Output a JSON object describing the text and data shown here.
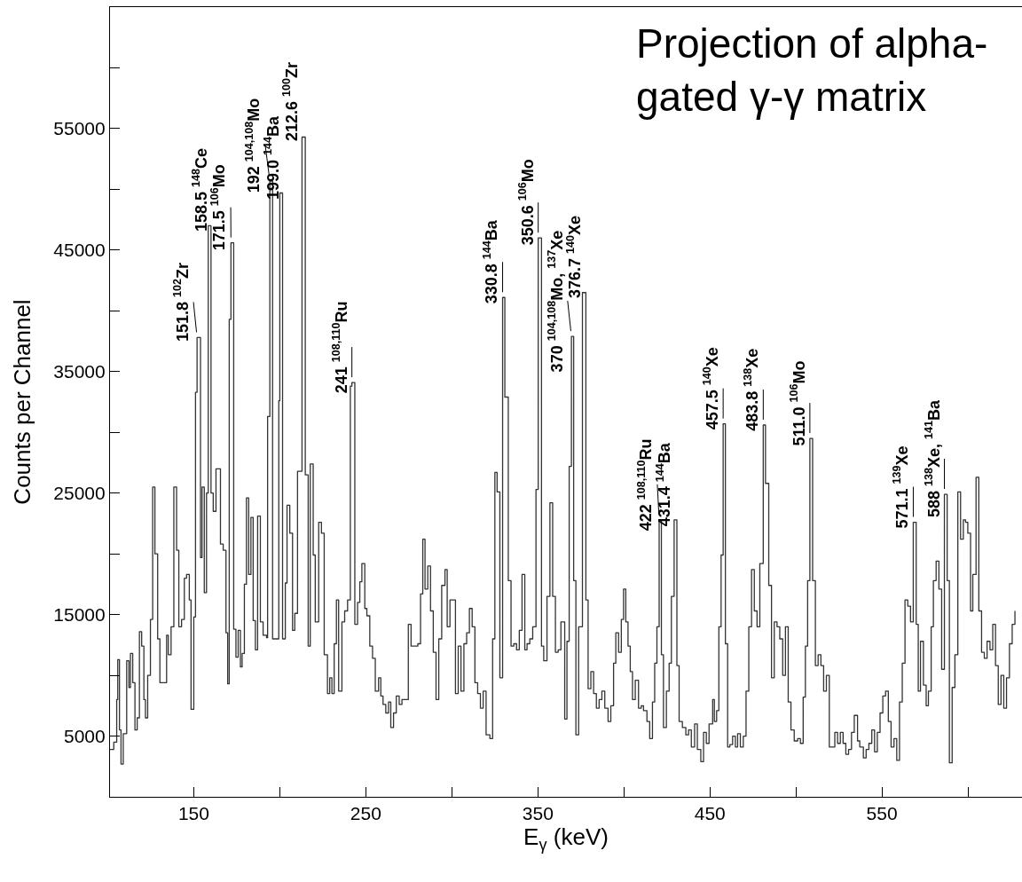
{
  "chart_data": {
    "type": "step",
    "title": "Projection of alpha-\ngated γ-γ matrix",
    "xlabel": "E$_{γ}$ (keV)",
    "ylabel": "Counts per Channel",
    "xlim": [
      101.3,
      631.4
    ],
    "ylim": [
      0,
      65000
    ],
    "xticks": [
      150,
      {
        "value": 200,
        "label": null
      },
      250,
      {
        "value": 300,
        "label": null
      },
      350,
      {
        "value": 400,
        "label": null
      },
      450,
      {
        "value": 500,
        "label": null
      },
      550,
      {
        "value": 600,
        "label": null
      }
    ],
    "yticks": [
      5000,
      {
        "value": 10000,
        "label": null
      },
      15000,
      {
        "value": 20000,
        "label": null
      },
      25000,
      {
        "value": 30000,
        "label": null
      },
      35000,
      {
        "value": 40000,
        "label": null
      },
      45000,
      {
        "value": 50000,
        "label": null
      },
      55000,
      {
        "value": 60000,
        "label": null
      }
    ],
    "marker": "none",
    "line_style": "solid",
    "series": [
      {
        "color": "#333333",
        "x": [
          101.3,
          103.5,
          105.2,
          105.8,
          106.8,
          107.7,
          109.0,
          111.0,
          112.3,
          113.2,
          114.5,
          115.8,
          117.1,
          118.4,
          119.7,
          121.0,
          121.9,
          123.2,
          124.8,
          126.1,
          127.4,
          129.0,
          130.3,
          134.2,
          135.2,
          136.8,
          138.4,
          140.0,
          141.3,
          142.9,
          144.5,
          145.8,
          147.4,
          148.4,
          150.0,
          151.0,
          151.9,
          153.9,
          154.8,
          156.1,
          157.4,
          158.4,
          160.0,
          161.3,
          162.9,
          165.5,
          167.1,
          168.7,
          169.7,
          170.6,
          171.6,
          173.2,
          174.5,
          175.8,
          177.1,
          178.1,
          179.4,
          180.6,
          181.9,
          183.2,
          184.5,
          185.8,
          187.1,
          188.7,
          190.3,
          192.3,
          192.9,
          194.2,
          195.8,
          199.4,
          200.0,
          201.6,
          203.2,
          204.2,
          205.8,
          207.4,
          208.7,
          210.3,
          212.9,
          214.8,
          216.5,
          217.7,
          219.4,
          220.6,
          222.6,
          224.2,
          225.8,
          227.7,
          229.0,
          230.3,
          231.6,
          232.9,
          234.2,
          236.1,
          237.7,
          239.4,
          241.0,
          241.9,
          243.6,
          245.2,
          246.5,
          247.7,
          249.4,
          250.6,
          252.3,
          253.9,
          255.5,
          257.4,
          258.7,
          260.0,
          261.6,
          263.2,
          264.5,
          266.1,
          267.7,
          269.4,
          271.0,
          274.7,
          276.3,
          280.2,
          281.8,
          283.1,
          284.4,
          286.0,
          287.6,
          289.2,
          290.8,
          292.4,
          294.1,
          296.0,
          297.3,
          298.9,
          302.1,
          303.7,
          305.3,
          307.0,
          308.6,
          310.2,
          311.8,
          313.4,
          315.0,
          316.6,
          318.2,
          319.9,
          322.1,
          323.7,
          325.0,
          326.3,
          327.9,
          329.5,
          330.8,
          332.8,
          334.4,
          336.0,
          337.6,
          339.2,
          340.8,
          342.4,
          343.7,
          345.3,
          347.0,
          348.9,
          350.2,
          352.1,
          353.4,
          355.3,
          357.0,
          358.6,
          360.2,
          361.8,
          363.4,
          365.6,
          366.9,
          368.2,
          369.5,
          370.8,
          372.1,
          373.7,
          375.9,
          377.9,
          379.2,
          380.8,
          382.4,
          384.0,
          385.6,
          387.2,
          388.9,
          390.8,
          392.4,
          394.0,
          395.3,
          396.9,
          398.5,
          399.8,
          401.1,
          402.4,
          403.7,
          405.0,
          406.6,
          408.5,
          410.1,
          411.4,
          413.4,
          415.0,
          416.6,
          417.9,
          419.2,
          420.5,
          421.8,
          423.0,
          424.7,
          426.3,
          427.6,
          429.2,
          430.8,
          432.1,
          434.0,
          436.0,
          437.6,
          439.2,
          441.1,
          442.7,
          444.7,
          446.3,
          447.9,
          449.5,
          451.6,
          452.6,
          453.9,
          455.2,
          456.5,
          457.7,
          459.0,
          460.3,
          461.6,
          463.2,
          464.8,
          466.1,
          467.7,
          469.4,
          471.0,
          472.6,
          474.2,
          475.8,
          477.4,
          479.0,
          481.0,
          482.3,
          484.2,
          485.8,
          487.4,
          489.0,
          490.6,
          492.3,
          493.9,
          495.5,
          497.1,
          499.0,
          501.0,
          502.6,
          504.2,
          505.5,
          506.8,
          508.1,
          509.7,
          511.3,
          512.9,
          514.5,
          516.1,
          517.7,
          519.4,
          521.0,
          522.6,
          524.2,
          525.8,
          527.4,
          529.0,
          530.6,
          532.3,
          533.9,
          535.8,
          537.1,
          539.2,
          540.8,
          542.4,
          544.1,
          545.7,
          547.3,
          548.9,
          550.5,
          552.1,
          553.7,
          555.3,
          557.0,
          558.6,
          560.2,
          561.8,
          563.4,
          565.0,
          566.6,
          568.2,
          569.9,
          571.1,
          572.4,
          574.1,
          575.7,
          577.0,
          578.6,
          579.9,
          581.5,
          583.1,
          584.7,
          586.3,
          587.9,
          589.2,
          590.8,
          592.4,
          594.1,
          595.7,
          597.3,
          598.6,
          599.9,
          601.5,
          602.8,
          604.7,
          606.3,
          607.9,
          609.5,
          611.1,
          612.8,
          614.4,
          616.0,
          617.6,
          619.2,
          620.8,
          622.4,
          624.1,
          625.7,
          627.3
        ],
        "values": [
          3900,
          4500,
          8000,
          11300,
          5500,
          2700,
          5200,
          11200,
          9000,
          11800,
          9400,
          5500,
          6500,
          13600,
          12400,
          8000,
          6500,
          10000,
          14600,
          25500,
          20000,
          13000,
          9400,
          13300,
          11700,
          14000,
          25500,
          20300,
          14000,
          14600,
          18000,
          18300,
          16200,
          7200,
          14800,
          33300,
          37800,
          19700,
          25500,
          16800,
          25000,
          47000,
          25000,
          23500,
          27000,
          20800,
          20300,
          13500,
          9300,
          39300,
          45600,
          13800,
          11500,
          13700,
          10700,
          11800,
          17500,
          24600,
          18300,
          23000,
          14500,
          12100,
          23100,
          14400,
          13300,
          13100,
          31300,
          50700,
          13000,
          32600,
          49700,
          13000,
          17600,
          24000,
          21700,
          13700,
          15100,
          26800,
          54300,
          26500,
          12400,
          27400,
          19900,
          14400,
          22600,
          21700,
          11700,
          8500,
          9800,
          8500,
          12600,
          16200,
          8700,
          14400,
          15300,
          16200,
          33800,
          34100,
          14200,
          16000,
          17700,
          19200,
          15500,
          14900,
          12400,
          11400,
          8700,
          9800,
          8300,
          7600,
          6900,
          7800,
          5700,
          6900,
          8300,
          7600,
          8000,
          14200,
          12400,
          12600,
          16700,
          21200,
          17100,
          19000,
          15300,
          11900,
          8000,
          13000,
          17400,
          18700,
          14000,
          16200,
          8500,
          12400,
          8700,
          12600,
          13500,
          15500,
          14000,
          9400,
          8500,
          7300,
          8700,
          5100,
          4800,
          13000,
          26700,
          25100,
          9800,
          41100,
          32900,
          17800,
          12400,
          12600,
          12100,
          13700,
          18300,
          12100,
          12600,
          13000,
          14000,
          25300,
          46000,
          12400,
          11200,
          16500,
          24200,
          16500,
          11900,
          12100,
          14400,
          6400,
          12800,
          27200,
          37900,
          17800,
          5100,
          14000,
          41500,
          16200,
          8900,
          10300,
          8500,
          7300,
          8000,
          8700,
          7300,
          6200,
          7500,
          11000,
          13500,
          11900,
          14600,
          17100,
          14400,
          12400,
          10300,
          8000,
          9600,
          7300,
          7500,
          7100,
          6200,
          4800,
          7800,
          11000,
          14000,
          22800,
          11700,
          5700,
          8700,
          11000,
          16500,
          22800,
          10800,
          6200,
          5700,
          5100,
          5500,
          4100,
          6000,
          3900,
          2900,
          5300,
          4400,
          6000,
          8000,
          6200,
          7100,
          14000,
          19900,
          30700,
          12600,
          4100,
          4300,
          5000,
          4100,
          5200,
          4100,
          5000,
          8700,
          14000,
          18700,
          15300,
          14000,
          19200,
          30600,
          25800,
          17400,
          9800,
          14400,
          14000,
          13000,
          10000,
          14000,
          7800,
          5500,
          4600,
          4800,
          4400,
          8200,
          12400,
          17800,
          29500,
          17800,
          10800,
          11700,
          10800,
          8700,
          10000,
          4100,
          4100,
          5300,
          4400,
          5300,
          4400,
          3500,
          3900,
          5300,
          6700,
          4600,
          4100,
          3200,
          3900,
          4400,
          5500,
          3700,
          5300,
          6900,
          8300,
          8700,
          6200,
          4100,
          4800,
          3000,
          7800,
          11000,
          16200,
          15700,
          14400,
          22600,
          14200,
          8700,
          12800,
          9200,
          7500,
          8700,
          14000,
          17800,
          19400,
          17100,
          10500,
          24900,
          17800,
          2800,
          9000,
          11700,
          25100,
          21200,
          22800,
          22600,
          21700,
          15300,
          18300,
          26300,
          15300,
          11900,
          11400,
          12800,
          12100,
          14200,
          10800,
          7600,
          10000,
          7300,
          9800,
          12600,
          14200,
          15300
        ]
      }
    ],
    "annotations": [
      {
        "text": "151.8 $^{102}$Zr",
        "x": 151.9,
        "y": 37800
      },
      {
        "text": "158.5 $^{148}$Ce",
        "x": 158.4,
        "y": 47000
      },
      {
        "text": "171.5 $^{106}$Mo",
        "x": 171.6,
        "y": 45600
      },
      {
        "text": "192 $^{104,108}$Mo",
        "x": 194.2,
        "y": 50700
      },
      {
        "text": "199.0 $^{144}$Ba",
        "x": 200.0,
        "y": 49700
      },
      {
        "text": "212.6 $^{100}$Zr",
        "x": 212.9,
        "y": 54300
      },
      {
        "text": "241 $^{108,110}$Ru",
        "x": 241.9,
        "y": 34100
      },
      {
        "text": "330.8 $^{144}$Ba",
        "x": 329.5,
        "y": 41100
      },
      {
        "text": "350.6 $^{106}$Mo",
        "x": 350.2,
        "y": 46000
      },
      {
        "text": "370 $^{104,108}$Mo, $^{137}$Xe",
        "x": 369.5,
        "y": 37900
      },
      {
        "text": "376.7 $^{140}$Xe",
        "x": 375.9,
        "y": 41500
      },
      {
        "text": "422 $^{108,110}$Ru",
        "x": 420.5,
        "y": 22800
      },
      {
        "text": "431.4 $^{144}$Ba",
        "x": 429.2,
        "y": 22800
      },
      {
        "text": "457.5 $^{140}$Xe",
        "x": 457.7,
        "y": 30700
      },
      {
        "text": "483.8 $^{138}$Xe",
        "x": 481.0,
        "y": 30600
      },
      {
        "text": "511.0 $^{106}$Mo",
        "x": 508.1,
        "y": 29500
      },
      {
        "text": "571.1 $^{139}$Xe",
        "x": 568.2,
        "y": 22600
      },
      {
        "text": "588 $^{138}$Xe, $^{141}$Ba",
        "x": 586.3,
        "y": 24900
      }
    ]
  }
}
